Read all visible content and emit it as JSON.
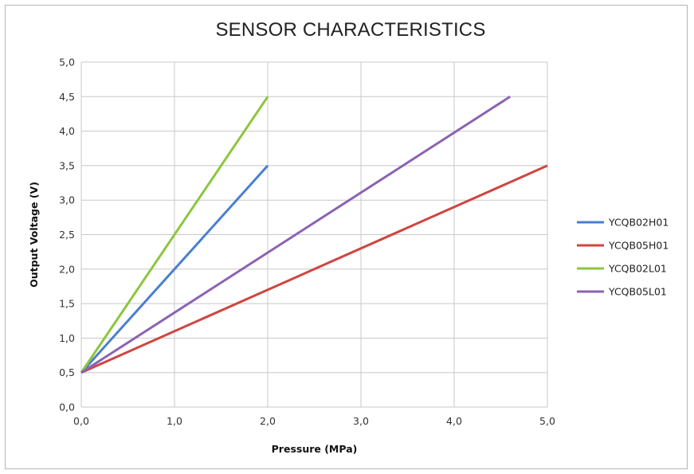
{
  "chart_data": {
    "type": "line",
    "title": "SENSOR CHARACTERISTICS",
    "xlabel": "Pressure (MPa)",
    "ylabel": "Output Voltage (V)",
    "xlim": [
      0,
      5
    ],
    "ylim": [
      0,
      5
    ],
    "x_ticks": [
      "0,0",
      "1,0",
      "2,0",
      "3,0",
      "4,0",
      "5,0"
    ],
    "y_ticks": [
      "0,0",
      "0,5",
      "1,0",
      "1,5",
      "2,0",
      "2,5",
      "3,0",
      "3,5",
      "4,0",
      "4,5",
      "5,0"
    ],
    "grid": true,
    "legend_position": "right",
    "series": [
      {
        "name": "YCQB02H01",
        "color": "#4a7fd0",
        "x": [
          0,
          2.0
        ],
        "y": [
          0.5,
          3.5
        ]
      },
      {
        "name": "YCQB05H01",
        "color": "#d0453f",
        "x": [
          0,
          5.0
        ],
        "y": [
          0.5,
          3.5
        ]
      },
      {
        "name": "YCQB02L01",
        "color": "#8dc63f",
        "x": [
          0,
          2.0
        ],
        "y": [
          0.5,
          4.5
        ]
      },
      {
        "name": "YCQB05L01",
        "color": "#8a62b5",
        "x": [
          0,
          4.6
        ],
        "y": [
          0.5,
          4.5
        ]
      }
    ]
  }
}
